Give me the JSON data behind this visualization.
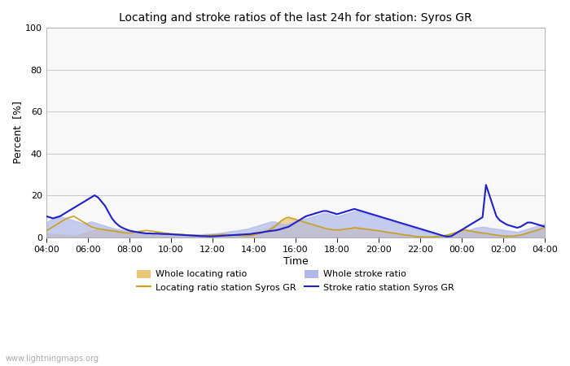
{
  "title": "Locating and stroke ratios of the last 24h for station: Syros GR",
  "xlabel": "Time",
  "ylabel": "Percent  [%]",
  "ylim": [
    0,
    100
  ],
  "yticks": [
    0,
    20,
    40,
    60,
    80,
    100
  ],
  "watermark": "www.lightningmaps.org",
  "xtick_labels": [
    "04:00",
    "06:00",
    "08:00",
    "10:00",
    "12:00",
    "14:00",
    "16:00",
    "18:00",
    "20:00",
    "22:00",
    "00:00",
    "02:00",
    "04:00"
  ],
  "locating_whole_color": "#e8c87a",
  "locating_station_color": "#c8a020",
  "stroke_whole_color": "#b0b8e8",
  "stroke_station_color": "#2020c8",
  "background_color": "#ffffff",
  "plot_bg_color": "#f8f8f8",
  "grid_color": "#cccccc",
  "n_points": 145,
  "locating_whole": [
    1.5,
    1.8,
    1.6,
    1.4,
    1.3,
    1.2,
    1.0,
    0.9,
    0.8,
    1.0,
    1.5,
    2.0,
    2.5,
    3.0,
    3.5,
    4.0,
    4.2,
    4.0,
    3.8,
    3.5,
    3.2,
    3.0,
    2.8,
    2.5,
    2.3,
    2.0,
    1.8,
    1.5,
    1.5,
    1.4,
    1.3,
    1.2,
    1.2,
    1.3,
    1.4,
    1.5,
    1.4,
    1.3,
    1.2,
    1.1,
    1.0,
    0.9,
    0.8,
    0.8,
    0.9,
    1.0,
    1.1,
    1.2,
    1.3,
    1.4,
    1.4,
    1.3,
    1.2,
    1.1,
    1.0,
    1.0,
    1.1,
    1.2,
    1.3,
    1.4,
    2.0,
    2.5,
    3.0,
    3.5,
    4.0,
    5.0,
    6.0,
    7.0,
    8.0,
    8.5,
    9.0,
    8.5,
    8.0,
    7.5,
    7.0,
    6.5,
    6.0,
    5.5,
    5.0,
    4.5,
    4.0,
    3.8,
    3.5,
    3.5,
    3.5,
    3.8,
    4.0,
    4.2,
    4.5,
    5.0,
    4.8,
    4.5,
    4.2,
    4.0,
    3.8,
    3.5,
    3.2,
    3.0,
    2.8,
    2.5,
    2.3,
    2.0,
    1.8,
    1.5,
    1.3,
    1.0,
    0.8,
    0.5,
    0.3,
    0.2,
    0.1,
    0.2,
    0.3,
    0.5,
    0.8,
    1.0,
    1.5,
    2.0,
    2.5,
    3.0,
    3.5,
    4.0,
    3.5,
    3.0,
    2.8,
    2.5,
    2.3,
    2.0,
    1.8,
    1.5,
    1.3,
    1.0,
    0.8,
    0.6,
    0.5,
    0.5,
    0.8,
    1.0,
    1.5,
    2.0,
    2.5,
    3.0,
    3.5,
    4.0,
    5.0
  ],
  "locating_station": [
    3.0,
    4.0,
    5.0,
    6.0,
    7.0,
    8.0,
    9.0,
    9.5,
    10.0,
    9.0,
    8.0,
    7.0,
    6.0,
    5.0,
    4.5,
    4.0,
    3.8,
    3.5,
    3.2,
    3.0,
    2.8,
    2.5,
    2.3,
    2.0,
    2.0,
    2.2,
    2.5,
    2.8,
    3.0,
    3.2,
    3.0,
    2.8,
    2.5,
    2.3,
    2.0,
    1.8,
    1.6,
    1.5,
    1.4,
    1.3,
    1.2,
    1.1,
    1.0,
    0.9,
    0.8,
    0.7,
    0.8,
    0.9,
    1.0,
    1.1,
    1.2,
    1.3,
    1.2,
    1.1,
    1.0,
    0.9,
    0.8,
    0.7,
    0.7,
    0.8,
    1.0,
    1.5,
    2.0,
    2.5,
    3.0,
    4.0,
    5.0,
    6.5,
    8.0,
    9.0,
    9.5,
    9.0,
    8.5,
    8.0,
    7.5,
    7.0,
    6.5,
    6.0,
    5.5,
    5.0,
    4.5,
    4.0,
    3.8,
    3.5,
    3.5,
    3.5,
    3.8,
    4.0,
    4.2,
    4.5,
    4.3,
    4.1,
    3.9,
    3.7,
    3.5,
    3.2,
    3.0,
    2.8,
    2.5,
    2.2,
    2.0,
    1.8,
    1.5,
    1.2,
    1.0,
    0.8,
    0.5,
    0.3,
    0.2,
    0.1,
    0.1,
    0.1,
    0.2,
    0.3,
    0.5,
    0.8,
    1.0,
    1.5,
    2.0,
    2.5,
    3.0,
    3.5,
    3.0,
    2.8,
    2.5,
    2.2,
    2.0,
    1.8,
    1.5,
    1.2,
    1.0,
    0.8,
    0.6,
    0.5,
    0.5,
    0.5,
    0.8,
    1.0,
    1.5,
    2.0,
    2.5,
    3.0,
    3.5,
    4.0,
    5.0
  ],
  "stroke_whole": [
    7.0,
    8.0,
    9.0,
    9.5,
    10.0,
    9.5,
    9.0,
    8.5,
    8.0,
    7.5,
    7.0,
    6.5,
    7.0,
    7.5,
    7.0,
    6.5,
    6.0,
    5.5,
    5.0,
    4.5,
    4.0,
    3.8,
    3.5,
    3.2,
    3.0,
    2.8,
    2.5,
    2.3,
    2.2,
    2.0,
    2.0,
    1.9,
    1.8,
    1.7,
    1.6,
    1.5,
    1.4,
    1.3,
    1.2,
    1.1,
    1.0,
    1.0,
    1.1,
    1.2,
    1.3,
    1.4,
    1.5,
    1.6,
    1.7,
    1.8,
    2.0,
    2.2,
    2.5,
    2.8,
    3.0,
    3.2,
    3.5,
    3.8,
    4.0,
    4.5,
    5.0,
    5.5,
    6.0,
    6.5,
    7.0,
    7.5,
    7.5,
    7.0,
    6.5,
    6.0,
    6.5,
    7.0,
    7.5,
    8.0,
    8.5,
    9.0,
    9.5,
    10.0,
    10.5,
    11.0,
    11.5,
    11.5,
    11.0,
    10.5,
    10.0,
    10.5,
    11.0,
    11.5,
    12.0,
    12.5,
    12.5,
    12.0,
    11.5,
    11.0,
    10.5,
    10.0,
    9.5,
    9.0,
    8.5,
    8.0,
    7.5,
    7.0,
    6.5,
    6.0,
    5.5,
    5.0,
    4.5,
    4.0,
    3.5,
    3.0,
    2.5,
    2.0,
    1.5,
    1.0,
    0.5,
    0.3,
    0.5,
    1.0,
    1.5,
    2.0,
    2.5,
    3.0,
    3.5,
    4.0,
    4.5,
    4.8,
    5.0,
    4.8,
    4.5,
    4.2,
    4.0,
    3.8,
    3.5,
    3.2,
    3.0,
    2.8,
    2.5,
    3.0,
    3.5,
    4.0,
    4.5,
    5.0,
    5.5,
    6.0,
    6.5
  ],
  "stroke_station": [
    10.0,
    9.5,
    9.0,
    9.5,
    10.0,
    11.0,
    12.0,
    13.0,
    14.0,
    15.0,
    16.0,
    17.0,
    18.0,
    19.0,
    20.0,
    19.0,
    17.0,
    15.0,
    12.0,
    9.0,
    7.0,
    5.5,
    4.5,
    3.8,
    3.2,
    2.8,
    2.5,
    2.2,
    2.0,
    1.8,
    1.8,
    1.7,
    1.7,
    1.6,
    1.5,
    1.5,
    1.4,
    1.3,
    1.2,
    1.1,
    1.0,
    0.9,
    0.8,
    0.7,
    0.6,
    0.5,
    0.5,
    0.4,
    0.4,
    0.5,
    0.6,
    0.7,
    0.8,
    0.9,
    1.0,
    1.1,
    1.2,
    1.3,
    1.4,
    1.5,
    1.8,
    2.0,
    2.2,
    2.5,
    2.8,
    3.0,
    3.2,
    3.5,
    4.0,
    4.5,
    5.0,
    6.0,
    7.0,
    8.0,
    9.0,
    10.0,
    10.5,
    11.0,
    11.5,
    12.0,
    12.5,
    12.5,
    12.0,
    11.5,
    11.0,
    11.5,
    12.0,
    12.5,
    13.0,
    13.5,
    13.0,
    12.5,
    12.0,
    11.5,
    11.0,
    10.5,
    10.0,
    9.5,
    9.0,
    8.5,
    8.0,
    7.5,
    7.0,
    6.5,
    6.0,
    5.5,
    5.0,
    4.5,
    4.0,
    3.5,
    3.0,
    2.5,
    2.0,
    1.5,
    1.0,
    0.5,
    0.3,
    0.5,
    1.5,
    2.5,
    3.5,
    4.5,
    5.5,
    6.5,
    7.5,
    8.5,
    9.5,
    25.0,
    20.0,
    15.0,
    10.0,
    8.0,
    7.0,
    6.0,
    5.5,
    5.0,
    4.5,
    5.0,
    6.0,
    7.0,
    7.0,
    6.5,
    6.0,
    5.5,
    5.0
  ]
}
